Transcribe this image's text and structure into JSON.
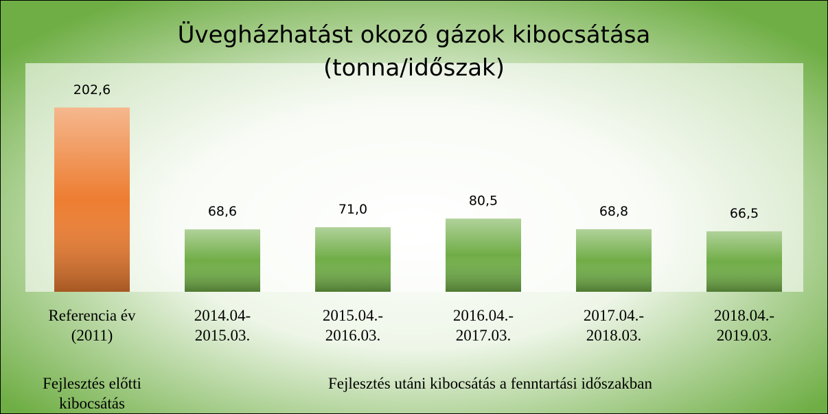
{
  "chart_data": {
    "type": "bar",
    "title": "Üvegházhatást okozó gázok kibocsátása",
    "subtitle": "(tonna/időszak)",
    "categories": [
      "Referencia év\n(2011)",
      "2014.04-\n2015.03.",
      "2015.04.-\n2016.03.",
      "2016.04.-\n2017.03.",
      "2017.04.-\n2018.03.",
      "2018.04.-\n2019.03."
    ],
    "values": [
      202.6,
      68.6,
      71.0,
      80.5,
      68.8,
      66.5
    ],
    "value_labels": [
      "202,6",
      "68,6",
      "71,0",
      "80,5",
      "68,8",
      "66,5"
    ],
    "colors": [
      "#ed7d31",
      "#70ad47",
      "#70ad47",
      "#70ad47",
      "#70ad47",
      "#70ad47"
    ],
    "ylim": [
      0,
      250
    ],
    "annotations": [
      "Fejlesztés előtti\nkibocsátás",
      "Fejlesztés utáni kibocsátás a fenntartási időszakban"
    ]
  }
}
